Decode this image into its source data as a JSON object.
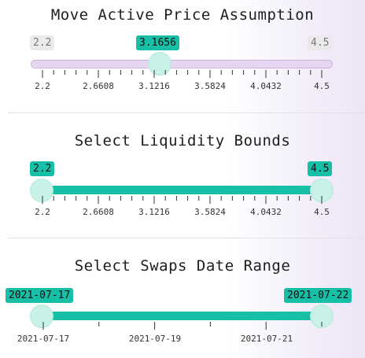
{
  "price_slider": {
    "title": "Move Active Price Assumption",
    "min_label": "2.2",
    "max_label": "4.5",
    "value_label": "3.1656",
    "value": 3.1656,
    "min": 2.2,
    "max": 4.5,
    "tick_labels": [
      "2.2",
      "2.6608",
      "3.1216",
      "3.5824",
      "4.0432",
      "4.5"
    ]
  },
  "liquidity_slider": {
    "title": "Select Liquidity Bounds",
    "low_label": "2.2",
    "high_label": "4.5",
    "low": 2.2,
    "high": 4.5,
    "min": 2.2,
    "max": 4.5,
    "tick_labels": [
      "2.2",
      "2.6608",
      "3.1216",
      "3.5824",
      "4.0432",
      "4.5"
    ]
  },
  "date_slider": {
    "title": "Select Swaps Date Range",
    "start_label": "2021-07-17",
    "end_label": "2021-07-22",
    "tick_labels": [
      "2021-07-17",
      "2021-07-19",
      "2021-07-21"
    ]
  },
  "colors": {
    "accent": "#17bfa6",
    "thumb": "#c8f1e8",
    "track_inactive": "#e6d6f2"
  }
}
